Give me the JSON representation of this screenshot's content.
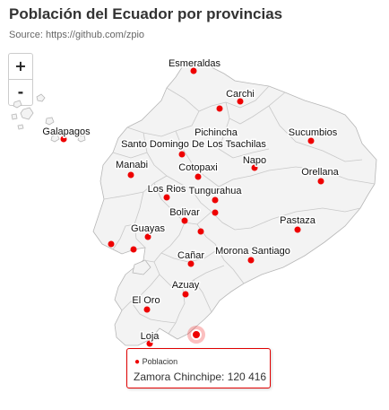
{
  "title": "Población del Ecuador por provincias",
  "subtitle": "Source: https://github.com/zpio",
  "zoom": {
    "in_label": "+",
    "out_label": "-"
  },
  "colors": {
    "point": "#ee0000",
    "land": "#f3f3f3",
    "border": "#b7b7b7",
    "tooltip_border": "#e00000"
  },
  "provinces": [
    {
      "name": "Esmeraldas"
    },
    {
      "name": "Carchi"
    },
    {
      "name": "Galapagos"
    },
    {
      "name": "Pichincha"
    },
    {
      "name": "Sucumbios"
    },
    {
      "name": "Santo Domingo De Los Tsachilas"
    },
    {
      "name": "Manabi"
    },
    {
      "name": "Cotopaxi"
    },
    {
      "name": "Napo"
    },
    {
      "name": "Orellana"
    },
    {
      "name": "Los Rios"
    },
    {
      "name": "Tungurahua"
    },
    {
      "name": "Bolivar"
    },
    {
      "name": "Pastaza"
    },
    {
      "name": "Guayas"
    },
    {
      "name": "Cañar"
    },
    {
      "name": "Morona Santiago"
    },
    {
      "name": "Azuay"
    },
    {
      "name": "El Oro"
    },
    {
      "name": "Loja"
    },
    {
      "name": ""
    },
    {
      "name": ""
    },
    {
      "name": ""
    },
    {
      "name": ""
    }
  ],
  "tooltip": {
    "series": "Poblacion",
    "value_text": "Zamora Chinchipe: 120 416"
  }
}
